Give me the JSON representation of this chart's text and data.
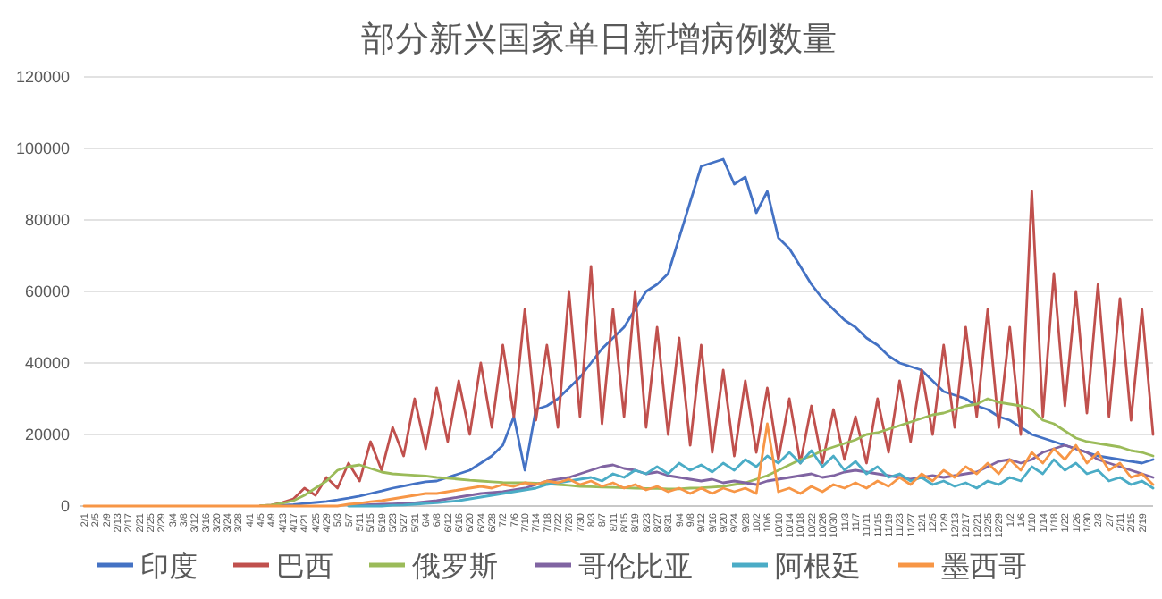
{
  "chart_data": {
    "type": "line",
    "title": "部分新兴国家单日新增病例数量",
    "legend": "bottom",
    "grid": "y",
    "ylim": [
      0,
      120000
    ],
    "yticks": [
      0,
      20000,
      40000,
      60000,
      80000,
      100000,
      120000
    ],
    "categories": [
      "2/1",
      "2/5",
      "2/9",
      "2/13",
      "2/17",
      "2/21",
      "2/25",
      "2/29",
      "3/4",
      "3/8",
      "3/12",
      "3/16",
      "3/20",
      "3/24",
      "3/28",
      "4/1",
      "4/5",
      "4/9",
      "4/13",
      "4/17",
      "4/21",
      "4/25",
      "4/29",
      "5/3",
      "5/7",
      "5/11",
      "5/15",
      "5/19",
      "5/23",
      "5/27",
      "5/31",
      "6/4",
      "6/8",
      "6/12",
      "6/16",
      "6/20",
      "6/24",
      "6/28",
      "7/2",
      "7/6",
      "7/10",
      "7/14",
      "7/18",
      "7/22",
      "7/26",
      "7/30",
      "8/3",
      "8/7",
      "8/11",
      "8/15",
      "8/19",
      "8/23",
      "8/27",
      "8/31",
      "9/4",
      "9/8",
      "9/12",
      "9/16",
      "9/20",
      "9/24",
      "9/28",
      "10/2",
      "10/6",
      "10/10",
      "10/14",
      "10/18",
      "10/22",
      "10/26",
      "10/30",
      "11/3",
      "11/7",
      "11/11",
      "11/15",
      "11/19",
      "11/23",
      "11/27",
      "12/1",
      "12/5",
      "12/9",
      "12/13",
      "12/17",
      "12/21",
      "12/25",
      "12/29",
      "1/2",
      "1/6",
      "1/10",
      "1/14",
      "1/18",
      "1/22",
      "1/26",
      "1/30",
      "2/3",
      "2/7",
      "2/11",
      "2/15",
      "2/19",
      null
    ],
    "series": [
      {
        "name": "印度",
        "color": "#4472c4",
        "values": [
          null,
          null,
          null,
          null,
          null,
          null,
          null,
          null,
          null,
          null,
          null,
          null,
          null,
          null,
          null,
          null,
          null,
          100,
          200,
          400,
          700,
          1000,
          1300,
          1700,
          2200,
          2800,
          3500,
          4200,
          5000,
          5600,
          6200,
          6800,
          7000,
          8000,
          9000,
          10000,
          12000,
          14000,
          17000,
          25000,
          10000,
          27000,
          28000,
          30000,
          33000,
          36000,
          40000,
          44000,
          47000,
          50000,
          55000,
          60000,
          62000,
          65000,
          75000,
          85000,
          95000,
          96000,
          97000,
          90000,
          92000,
          82000,
          88000,
          75000,
          72000,
          67000,
          62000,
          58000,
          55000,
          52000,
          50000,
          47000,
          45000,
          42000,
          40000,
          39000,
          38000,
          35000,
          32000,
          31000,
          30000,
          28000,
          27000,
          25000,
          24000,
          22000,
          20000,
          19000,
          18000,
          17000,
          16000,
          15000,
          14000,
          13500,
          13000,
          12500,
          12000,
          13000
        ]
      },
      {
        "name": "巴西",
        "color": "#c0504d",
        "values": [
          null,
          null,
          null,
          null,
          null,
          null,
          null,
          null,
          null,
          null,
          null,
          null,
          null,
          null,
          null,
          null,
          100,
          300,
          1000,
          2000,
          5000,
          3000,
          8000,
          5000,
          12000,
          7000,
          18000,
          10000,
          22000,
          14000,
          30000,
          16000,
          33000,
          18000,
          35000,
          20000,
          40000,
          22000,
          45000,
          25000,
          55000,
          24000,
          45000,
          22000,
          60000,
          25000,
          67000,
          23000,
          55000,
          25000,
          60000,
          22000,
          50000,
          20000,
          47000,
          17000,
          45000,
          15000,
          38000,
          14000,
          35000,
          15000,
          33000,
          13000,
          30000,
          12000,
          28000,
          12000,
          27000,
          13000,
          25000,
          12000,
          30000,
          15000,
          35000,
          18000,
          38000,
          20000,
          45000,
          22000,
          50000,
          25000,
          55000,
          22000,
          50000,
          20000,
          88000,
          25000,
          65000,
          28000,
          60000,
          26000,
          62000,
          25000,
          58000,
          24000,
          55000,
          20000
        ]
      },
      {
        "name": "俄罗斯",
        "color": "#9bbb59",
        "values": [
          null,
          null,
          null,
          null,
          null,
          null,
          null,
          null,
          null,
          null,
          null,
          null,
          null,
          null,
          null,
          null,
          100,
          300,
          800,
          1500,
          3000,
          5000,
          7000,
          10000,
          11000,
          11500,
          10500,
          9500,
          9000,
          8800,
          8600,
          8400,
          8000,
          7800,
          7500,
          7200,
          7000,
          6800,
          6600,
          6500,
          6500,
          6400,
          6200,
          6000,
          5800,
          5500,
          5400,
          5300,
          5200,
          5100,
          5000,
          4900,
          4900,
          4800,
          4800,
          5000,
          5100,
          5300,
          5500,
          6000,
          6500,
          7500,
          8500,
          10000,
          11500,
          13000,
          14000,
          15500,
          16500,
          17500,
          18500,
          20000,
          20500,
          21500,
          22500,
          23500,
          24500,
          25500,
          26000,
          27000,
          28000,
          28500,
          30000,
          29000,
          28500,
          28000,
          27000,
          24000,
          23000,
          21000,
          19000,
          18000,
          17500,
          17000,
          16500,
          15500,
          15000,
          14000
        ]
      },
      {
        "name": "哥伦比亚",
        "color": "#8064a2",
        "values": [
          null,
          null,
          null,
          null,
          null,
          null,
          null,
          null,
          null,
          null,
          null,
          null,
          null,
          null,
          null,
          null,
          null,
          null,
          null,
          null,
          null,
          null,
          null,
          null,
          200,
          300,
          400,
          500,
          600,
          700,
          900,
          1200,
          1500,
          2000,
          2500,
          3000,
          3500,
          3800,
          4000,
          4500,
          5000,
          6000,
          7000,
          7500,
          8000,
          9000,
          10000,
          11000,
          11500,
          10500,
          10000,
          9000,
          9500,
          8500,
          8000,
          7500,
          7000,
          7500,
          6500,
          7000,
          6500,
          6000,
          7000,
          7500,
          8000,
          8500,
          9000,
          8000,
          8500,
          9500,
          10000,
          9500,
          9000,
          8500,
          8000,
          7500,
          8000,
          8500,
          8000,
          8500,
          9000,
          9500,
          11000,
          12500,
          13000,
          12000,
          13000,
          15000,
          16000,
          17000,
          16000,
          15000,
          13000,
          12000,
          11000,
          10000,
          9000,
          8000
        ]
      },
      {
        "name": "阿根廷",
        "color": "#4bacc6",
        "values": [
          null,
          null,
          null,
          null,
          null,
          null,
          null,
          null,
          null,
          null,
          null,
          null,
          null,
          null,
          null,
          null,
          null,
          null,
          null,
          null,
          null,
          null,
          null,
          null,
          0,
          0,
          0,
          0,
          200,
          300,
          500,
          700,
          900,
          1200,
          1500,
          2000,
          2500,
          3000,
          3500,
          4000,
          4500,
          5000,
          6000,
          6500,
          7000,
          7500,
          8000,
          7000,
          9000,
          8000,
          10000,
          9000,
          11000,
          9000,
          12000,
          10000,
          11500,
          9500,
          12000,
          10000,
          13000,
          11000,
          14000,
          12000,
          15000,
          12000,
          15500,
          11000,
          14000,
          10000,
          12500,
          9000,
          11000,
          8000,
          9000,
          7000,
          8000,
          6000,
          7000,
          5500,
          6500,
          5000,
          7000,
          6000,
          8000,
          7000,
          11000,
          9000,
          13000,
          10000,
          12000,
          9000,
          10000,
          7000,
          8000,
          6000,
          7000,
          5000
        ]
      },
      {
        "name": "墨西哥",
        "color": "#f79646",
        "values": [
          0,
          0,
          0,
          0,
          0,
          0,
          0,
          0,
          0,
          0,
          0,
          0,
          0,
          0,
          0,
          0,
          0,
          0,
          0,
          0,
          0,
          0,
          0,
          0,
          500,
          800,
          1200,
          1500,
          2000,
          2500,
          3000,
          3500,
          3500,
          4000,
          4500,
          5000,
          5500,
          5000,
          6000,
          5500,
          6500,
          6000,
          7000,
          6500,
          7500,
          6000,
          7000,
          5500,
          6500,
          5000,
          6000,
          4500,
          5500,
          4000,
          5000,
          3500,
          5000,
          3500,
          5000,
          4000,
          5000,
          3500,
          23000,
          4000,
          5000,
          3500,
          5500,
          4000,
          6000,
          5000,
          6500,
          5000,
          7000,
          5500,
          8000,
          6000,
          9000,
          7000,
          10000,
          8000,
          11000,
          9000,
          12000,
          9000,
          13000,
          10000,
          15000,
          12000,
          16000,
          13000,
          17000,
          12000,
          15000,
          10000,
          12000,
          8000,
          9000,
          6000
        ]
      }
    ]
  }
}
